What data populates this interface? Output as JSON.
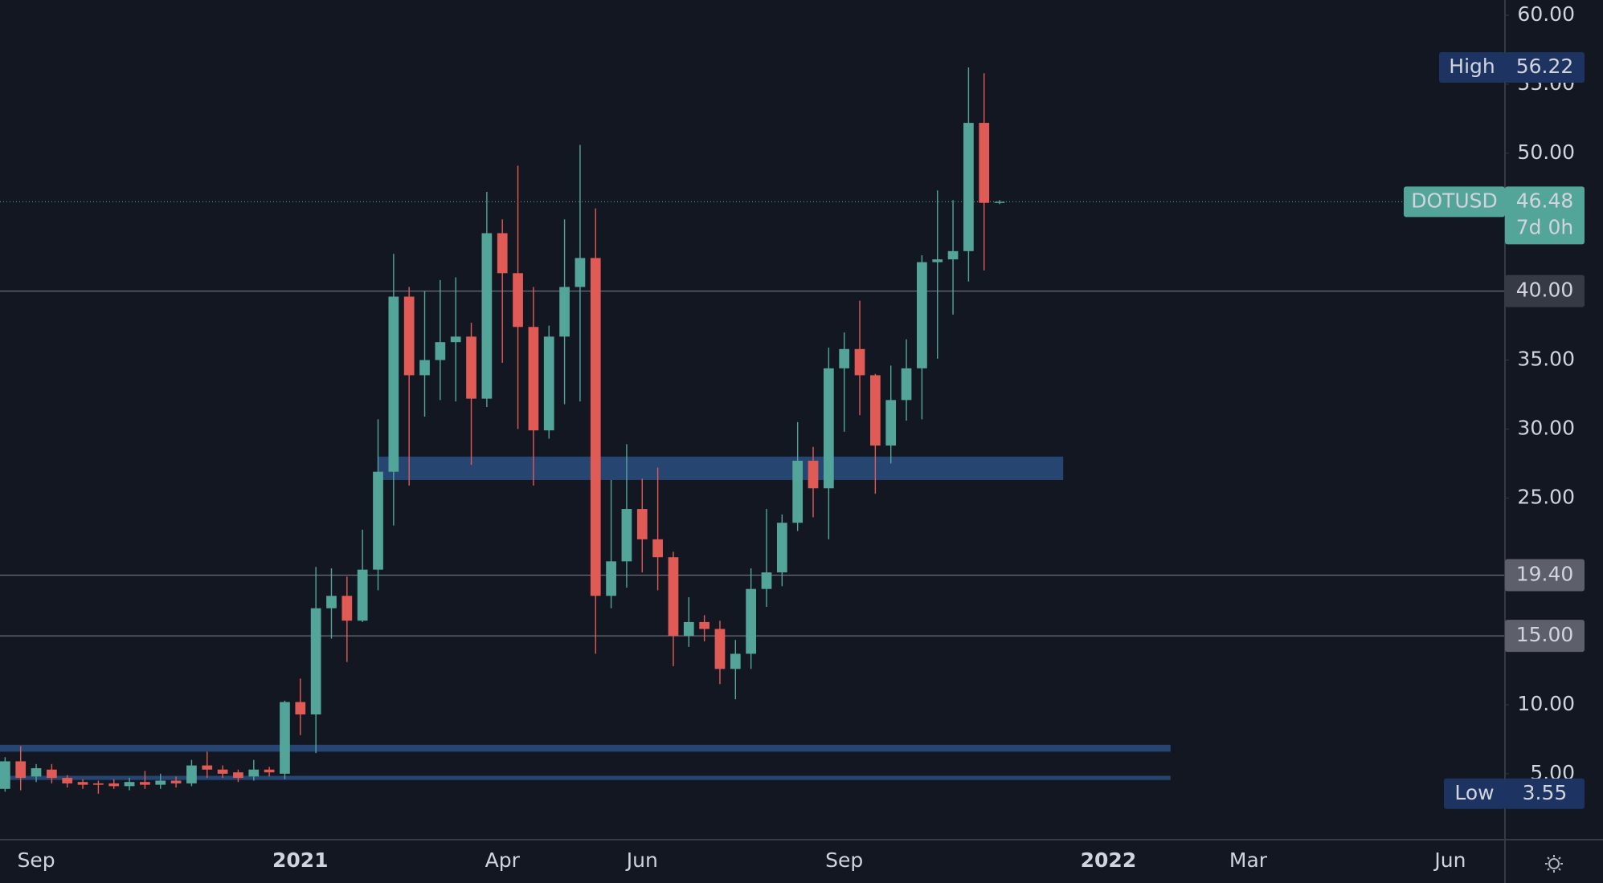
{
  "chart_data": {
    "type": "candlestick",
    "symbol": "DOTUSD",
    "countdown": "7d 0h",
    "up_color": "#53a59a",
    "down_color": "#e05b56",
    "categories": [
      null,
      null,
      "Sep",
      null,
      null,
      null,
      null,
      null,
      null,
      null,
      null,
      null,
      null,
      null,
      null,
      null,
      null,
      null,
      null,
      "2021",
      null,
      null,
      null,
      null,
      null,
      null,
      null,
      null,
      null,
      null,
      null,
      null,
      "Apr",
      null,
      null,
      null,
      null,
      null,
      null,
      null,
      null,
      "Jun",
      null,
      null,
      null,
      null,
      null,
      null,
      null,
      null,
      null,
      null,
      null,
      null,
      "Sep",
      null,
      null,
      null,
      null,
      null,
      null,
      null,
      null,
      null,
      null,
      null,
      null,
      null,
      null,
      null,
      null,
      "2022",
      null,
      null,
      null,
      null,
      null,
      null,
      null,
      null,
      "Mar",
      null,
      null,
      null,
      null,
      null,
      null,
      null,
      null,
      null,
      null,
      null,
      null,
      "Jun",
      null,
      null,
      null
    ],
    "open": [
      3.9,
      5.9,
      4.8,
      5.3,
      4.7,
      4.4,
      4.3,
      4.3,
      4.1,
      4.4,
      4.2,
      4.5,
      4.3,
      5.6,
      5.3,
      5.1,
      4.8,
      5.3,
      5.0,
      10.2,
      9.3,
      17.0,
      17.9,
      16.1,
      19.8,
      26.9,
      39.6,
      33.9,
      35.0,
      36.3,
      36.7,
      32.2,
      44.2,
      41.3,
      37.4,
      29.9,
      36.7,
      40.3,
      42.4,
      17.9,
      20.4,
      24.2,
      22.0,
      20.7,
      15.0,
      16.0,
      15.5,
      12.6,
      13.7,
      18.4,
      19.6,
      23.2,
      27.7,
      25.7,
      34.4,
      35.8,
      33.9,
      28.8,
      32.1,
      34.4,
      42.1,
      42.3,
      42.9,
      52.2,
      46.4,
      null,
      null,
      null,
      null,
      null,
      null,
      null,
      null,
      null,
      null,
      null,
      null,
      null,
      null,
      null,
      null,
      null,
      null,
      null,
      null,
      null,
      null,
      null,
      null,
      null,
      null,
      null,
      null,
      null,
      null,
      null,
      null
    ],
    "high": [
      6.2,
      7.0,
      5.7,
      5.7,
      4.9,
      4.6,
      4.5,
      4.6,
      4.7,
      5.2,
      5.0,
      4.8,
      6.0,
      6.6,
      5.6,
      5.3,
      6.0,
      5.5,
      10.3,
      11.9,
      20.0,
      19.9,
      19.3,
      22.7,
      30.7,
      42.7,
      40.3,
      40.0,
      40.8,
      41.0,
      37.7,
      47.2,
      45.2,
      49.1,
      40.3,
      37.5,
      45.2,
      50.6,
      46.0,
      26.3,
      28.9,
      26.4,
      27.2,
      21.1,
      17.8,
      16.5,
      16.1,
      14.7,
      19.9,
      24.2,
      23.8,
      30.5,
      28.7,
      35.9,
      37.0,
      39.3,
      34.0,
      34.6,
      36.5,
      42.6,
      47.3,
      46.6,
      56.22,
      55.8,
      46.6,
      null,
      null,
      null,
      null,
      null,
      null,
      null,
      null,
      null,
      null,
      null,
      null,
      null,
      null,
      null,
      null,
      null,
      null,
      null,
      null,
      null,
      null,
      null,
      null,
      null,
      null,
      null,
      null,
      null,
      null,
      null,
      null
    ],
    "low": [
      3.7,
      3.8,
      4.4,
      4.3,
      4.0,
      3.9,
      3.55,
      3.9,
      3.8,
      3.9,
      3.9,
      4.0,
      4.1,
      4.7,
      4.7,
      4.4,
      4.5,
      4.8,
      4.6,
      7.8,
      6.5,
      14.8,
      13.1,
      16.0,
      18.3,
      23.0,
      25.9,
      30.9,
      32.1,
      32.0,
      27.4,
      31.6,
      34.8,
      30.0,
      25.9,
      29.3,
      31.8,
      32.0,
      13.7,
      17.0,
      18.5,
      19.6,
      18.3,
      12.8,
      14.2,
      14.6,
      11.5,
      10.4,
      12.6,
      17.1,
      18.6,
      22.6,
      23.6,
      22.0,
      29.8,
      31.0,
      25.3,
      27.5,
      30.6,
      30.7,
      35.1,
      38.3,
      40.7,
      41.5,
      46.3,
      null,
      null,
      null,
      null,
      null,
      null,
      null,
      null,
      null,
      null,
      null,
      null,
      null,
      null,
      null,
      null,
      null,
      null,
      null,
      null,
      null,
      null,
      null,
      null,
      null,
      null,
      null,
      null,
      null,
      null,
      null,
      null
    ],
    "close": [
      5.9,
      4.7,
      5.4,
      4.7,
      4.3,
      4.2,
      4.2,
      4.1,
      4.4,
      4.2,
      4.5,
      4.3,
      5.6,
      5.3,
      5.0,
      4.7,
      5.3,
      5.1,
      10.2,
      9.3,
      17.0,
      17.9,
      16.1,
      19.8,
      26.9,
      39.6,
      33.9,
      35.0,
      36.3,
      36.7,
      32.2,
      44.2,
      41.3,
      37.4,
      29.9,
      36.7,
      40.3,
      42.4,
      17.9,
      20.4,
      24.2,
      22.0,
      20.7,
      15.0,
      16.0,
      15.5,
      12.6,
      13.7,
      18.4,
      19.6,
      23.2,
      27.7,
      25.7,
      34.4,
      35.8,
      33.9,
      28.8,
      32.1,
      34.4,
      42.1,
      42.3,
      42.9,
      52.2,
      46.4,
      46.48,
      null,
      null,
      null,
      null,
      null,
      null,
      null,
      null,
      null,
      null,
      null,
      null,
      null,
      null,
      null,
      null,
      null,
      null,
      null,
      null,
      null,
      null,
      null,
      null,
      null,
      null,
      null,
      null,
      null,
      null,
      null,
      null
    ],
    "ylim": [
      0.22,
      61.11
    ],
    "yticks": [
      {
        "value": 5,
        "label": "5.00"
      },
      {
        "value": 10,
        "label": "10.00"
      },
      {
        "value": 25,
        "label": "25.00"
      },
      {
        "value": 30,
        "label": "30.00"
      },
      {
        "value": 35,
        "label": "35.00"
      },
      {
        "value": 50,
        "label": "50.00"
      },
      {
        "value": 55,
        "label": "55.00"
      },
      {
        "value": 60,
        "label": "60.00"
      }
    ],
    "levels": [
      {
        "value": 40,
        "label": "40.00"
      },
      {
        "value": 19.4,
        "label": "19.40"
      },
      {
        "value": 15,
        "label": "15.00"
      }
    ],
    "zones": [
      {
        "low": 26.3,
        "high": 28.0
      },
      {
        "low": 6.6,
        "high": 7.1
      },
      {
        "low": 4.55,
        "high": 4.85
      }
    ],
    "last": {
      "value": 46.48,
      "label": "46.48"
    },
    "high_mark": {
      "name": "High",
      "value": 56.22,
      "label": "56.22"
    },
    "low_mark": {
      "name": "Low",
      "value": 3.55,
      "label": "3.55"
    }
  }
}
